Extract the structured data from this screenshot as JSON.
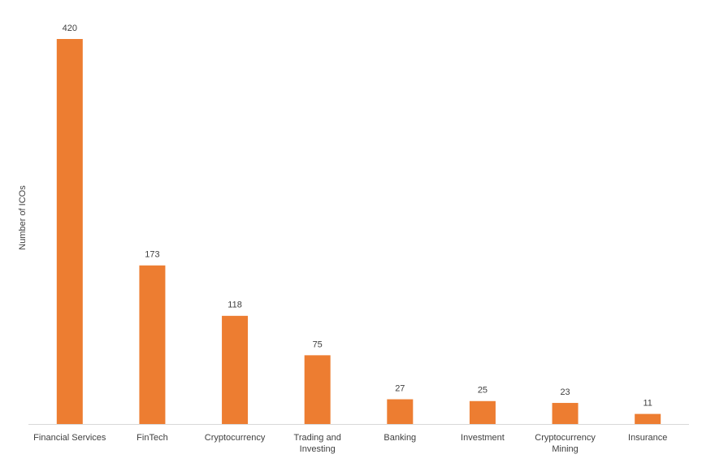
{
  "chart_data": {
    "type": "bar",
    "y_label": "Number of ICOs",
    "categories": [
      "Financial Services",
      "FinTech",
      "Cryptocurrency",
      "Trading and Investing",
      "Banking",
      "Investment",
      "Cryptocurrency Mining",
      "Insurance"
    ],
    "values": [
      420,
      173,
      118,
      75,
      27,
      25,
      23,
      11
    ],
    "color": "#ed7d31",
    "grid": false
  }
}
